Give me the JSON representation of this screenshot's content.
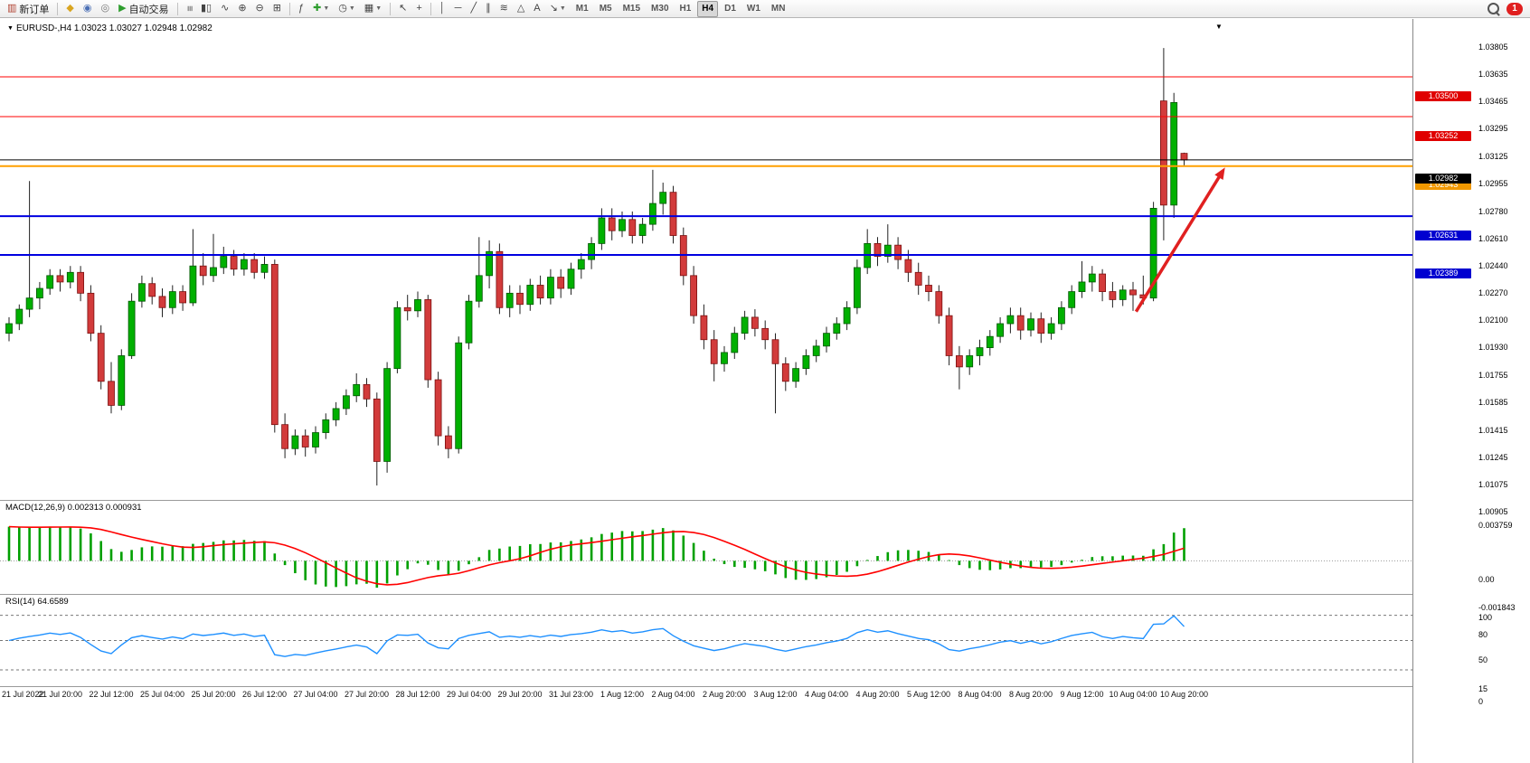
{
  "window": {
    "title": "EURUSD-,H4 1.03023 1.03027 1.02948 1.02982"
  },
  "toolbar": {
    "items": [
      {
        "name": "new-order-button",
        "glyph": "▥",
        "glyph_color": "#b04030",
        "label": "新订单"
      },
      {
        "sep": true
      },
      {
        "name": "market-watch-icon",
        "glyph": "◆",
        "glyph_color": "#d9a520"
      },
      {
        "name": "data-window-icon",
        "glyph": "◉",
        "glyph_color": "#4a6fb5"
      },
      {
        "name": "navigator-icon",
        "glyph": "◎",
        "glyph_color": "#777777"
      },
      {
        "name": "autotrading-button",
        "glyph": "▶",
        "glyph_color": "#2e9e2e",
        "label": "自动交易"
      },
      {
        "sep": true
      },
      {
        "name": "bar-chart-button",
        "glyph": "≡",
        "rot": true
      },
      {
        "name": "candlestick-chart-button",
        "glyph": "▮▯"
      },
      {
        "name": "line-chart-button",
        "glyph": "∿"
      },
      {
        "name": "zoom-in-button",
        "glyph": "⊕"
      },
      {
        "name": "zoom-out-button",
        "glyph": "⊖"
      },
      {
        "name": "tile-windows-button",
        "glyph": "⊞"
      },
      {
        "sep": true
      },
      {
        "name": "indicators-button",
        "glyph": "ƒ"
      },
      {
        "name": "add-indicator-button",
        "glyph": "✚",
        "glyph_color": "#2e9e2e",
        "dropdown": true
      },
      {
        "name": "periods-button",
        "glyph": "◷",
        "dropdown": true
      },
      {
        "name": "templates-button",
        "glyph": "▦",
        "dropdown": true
      },
      {
        "sep": true
      },
      {
        "name": "cursor-button",
        "glyph": "↖"
      },
      {
        "name": "crosshair-button",
        "glyph": "+"
      },
      {
        "sep": true
      },
      {
        "name": "vertical-line-button",
        "glyph": "│"
      },
      {
        "name": "horizontal-line-button",
        "glyph": "─"
      },
      {
        "name": "trendline-button",
        "glyph": "╱"
      },
      {
        "name": "channel-button",
        "glyph": "∥"
      },
      {
        "name": "fibonacci-button",
        "glyph": "≋"
      },
      {
        "name": "shapes-button",
        "glyph": "△"
      },
      {
        "name": "text-button",
        "glyph": "A"
      },
      {
        "name": "arrows-button",
        "glyph": "↘",
        "dropdown": true
      },
      {
        "name": "tf-m1-button",
        "tf": "M1"
      },
      {
        "name": "tf-m5-button",
        "tf": "M5"
      },
      {
        "name": "tf-m15-button",
        "tf": "M15"
      },
      {
        "name": "tf-m30-button",
        "tf": "M30"
      },
      {
        "name": "tf-h1-button",
        "tf": "H1"
      },
      {
        "name": "tf-h4-button",
        "tf": "H4",
        "active": true
      },
      {
        "name": "tf-d1-button",
        "tf": "D1"
      },
      {
        "name": "tf-w1-button",
        "tf": "W1"
      },
      {
        "name": "tf-mn-button",
        "tf": "MN"
      }
    ],
    "notification_count": "1"
  },
  "chart_data": {
    "type": "candlestick",
    "symbol": "EURUSD-",
    "timeframe": "H4",
    "title": "EURUSD-,H4 1.03023 1.03027 1.02948 1.02982",
    "current": {
      "open": 1.03023,
      "high": 1.03027,
      "low": 1.02948,
      "close": 1.02982
    },
    "colors": {
      "up": "#00B000",
      "up_stroke": "#005500",
      "down": "#D23B3B",
      "down_stroke": "#7A1010",
      "wick": "#222222"
    },
    "price_axis": {
      "max": 1.03805,
      "min": 1.00905,
      "ticks": [
        "1.03805",
        "1.03635",
        "1.03465",
        "1.03295",
        "1.03125",
        "1.02955",
        "1.02780",
        "1.02610",
        "1.02440",
        "1.02270",
        "1.02100",
        "1.01930",
        "1.01755",
        "1.01585",
        "1.01415",
        "1.01245",
        "1.01075",
        "1.00905"
      ]
    },
    "time_labels": [
      "21 Jul 2022",
      "21 Jul 20:00",
      "22 Jul 12:00",
      "25 Jul 04:00",
      "25 Jul 20:00",
      "26 Jul 12:00",
      "27 Jul 04:00",
      "27 Jul 20:00",
      "28 Jul 12:00",
      "29 Jul 04:00",
      "29 Jul 20:00",
      "31 Jul 23:00",
      "1 Aug 12:00",
      "2 Aug 04:00",
      "2 Aug 20:00",
      "3 Aug 12:00",
      "4 Aug 04:00",
      "4 Aug 20:00",
      "5 Aug 12:00",
      "8 Aug 04:00",
      "8 Aug 20:00",
      "9 Aug 12:00",
      "10 Aug 04:00",
      "10 Aug 20:00"
    ],
    "candles": [
      [
        1.019,
        1.02,
        1.0185,
        1.0196
      ],
      [
        1.0196,
        1.0208,
        1.0192,
        1.0205
      ],
      [
        1.0205,
        1.0285,
        1.02,
        1.0212
      ],
      [
        1.0212,
        1.0222,
        1.0205,
        1.0218
      ],
      [
        1.0218,
        1.023,
        1.0214,
        1.0226
      ],
      [
        1.0226,
        1.023,
        1.0216,
        1.0222
      ],
      [
        1.0222,
        1.0232,
        1.0218,
        1.0228
      ],
      [
        1.0228,
        1.0232,
        1.021,
        1.0215
      ],
      [
        1.0215,
        1.022,
        1.0185,
        1.019
      ],
      [
        1.019,
        1.0195,
        1.0155,
        1.016
      ],
      [
        1.016,
        1.0172,
        1.014,
        1.0145
      ],
      [
        1.0145,
        1.018,
        1.0142,
        1.0176
      ],
      [
        1.0176,
        1.0215,
        1.0174,
        1.021
      ],
      [
        1.021,
        1.0226,
        1.0206,
        1.0221
      ],
      [
        1.0221,
        1.0225,
        1.0208,
        1.0213
      ],
      [
        1.0213,
        1.0218,
        1.02,
        1.0206
      ],
      [
        1.0206,
        1.022,
        1.0202,
        1.0216
      ],
      [
        1.0216,
        1.022,
        1.0204,
        1.0209
      ],
      [
        1.0209,
        1.0255,
        1.0207,
        1.0232
      ],
      [
        1.0232,
        1.024,
        1.022,
        1.0226
      ],
      [
        1.0226,
        1.0252,
        1.0222,
        1.0231
      ],
      [
        1.0231,
        1.0244,
        1.0227,
        1.0238
      ],
      [
        1.0238,
        1.0242,
        1.0226,
        1.023
      ],
      [
        1.023,
        1.024,
        1.0226,
        1.0236
      ],
      [
        1.0236,
        1.024,
        1.0224,
        1.0228
      ],
      [
        1.0228,
        1.0238,
        1.0224,
        1.0233
      ],
      [
        1.0233,
        1.0236,
        1.0128,
        1.0133
      ],
      [
        1.0133,
        1.014,
        1.0112,
        1.0118
      ],
      [
        1.0118,
        1.013,
        1.0114,
        1.0126
      ],
      [
        1.0126,
        1.013,
        1.0113,
        1.0119
      ],
      [
        1.0119,
        1.0132,
        1.0115,
        1.0128
      ],
      [
        1.0128,
        1.014,
        1.0124,
        1.0136
      ],
      [
        1.0136,
        1.0147,
        1.0132,
        1.0143
      ],
      [
        1.0143,
        1.0155,
        1.0139,
        1.0151
      ],
      [
        1.0151,
        1.0165,
        1.0147,
        1.0158
      ],
      [
        1.0158,
        1.0162,
        1.0144,
        1.0149
      ],
      [
        1.0149,
        1.0153,
        1.0095,
        1.011
      ],
      [
        1.011,
        1.0172,
        1.0103,
        1.0168
      ],
      [
        1.0168,
        1.021,
        1.0165,
        1.0206
      ],
      [
        1.0206,
        1.0214,
        1.0198,
        1.0204
      ],
      [
        1.0204,
        1.0216,
        1.02,
        1.0211
      ],
      [
        1.0211,
        1.0214,
        1.0156,
        1.0161
      ],
      [
        1.0161,
        1.0166,
        1.012,
        1.0126
      ],
      [
        1.0126,
        1.0132,
        1.0112,
        1.0118
      ],
      [
        1.0118,
        1.0188,
        1.0115,
        1.0184
      ],
      [
        1.0184,
        1.0214,
        1.018,
        1.021
      ],
      [
        1.021,
        1.025,
        1.0206,
        1.0226
      ],
      [
        1.0226,
        1.0248,
        1.0218,
        1.0241
      ],
      [
        1.0241,
        1.0246,
        1.0202,
        1.0206
      ],
      [
        1.0206,
        1.022,
        1.02,
        1.0215
      ],
      [
        1.0215,
        1.022,
        1.0202,
        1.0208
      ],
      [
        1.0208,
        1.0224,
        1.0204,
        1.022
      ],
      [
        1.022,
        1.0226,
        1.0208,
        1.0212
      ],
      [
        1.0212,
        1.023,
        1.0208,
        1.0225
      ],
      [
        1.0225,
        1.023,
        1.0212,
        1.0218
      ],
      [
        1.0218,
        1.0234,
        1.0214,
        1.023
      ],
      [
        1.023,
        1.024,
        1.0224,
        1.0236
      ],
      [
        1.0236,
        1.025,
        1.023,
        1.0246
      ],
      [
        1.0246,
        1.0268,
        1.0242,
        1.0262
      ],
      [
        1.0262,
        1.0268,
        1.0248,
        1.0254
      ],
      [
        1.0254,
        1.0266,
        1.025,
        1.0261
      ],
      [
        1.0261,
        1.0266,
        1.0246,
        1.0251
      ],
      [
        1.0251,
        1.0262,
        1.0246,
        1.0258
      ],
      [
        1.0258,
        1.0292,
        1.0254,
        1.0271
      ],
      [
        1.0271,
        1.0284,
        1.0264,
        1.0278
      ],
      [
        1.0278,
        1.0282,
        1.0246,
        1.0251
      ],
      [
        1.0251,
        1.0256,
        1.022,
        1.0226
      ],
      [
        1.0226,
        1.0232,
        1.0196,
        1.0201
      ],
      [
        1.0201,
        1.0208,
        1.018,
        1.0186
      ],
      [
        1.0186,
        1.0192,
        1.016,
        1.0171
      ],
      [
        1.0171,
        1.0182,
        1.0166,
        1.0178
      ],
      [
        1.0178,
        1.0194,
        1.0174,
        1.019
      ],
      [
        1.019,
        1.0204,
        1.0186,
        1.02
      ],
      [
        1.02,
        1.0205,
        1.0188,
        1.0193
      ],
      [
        1.0193,
        1.0198,
        1.018,
        1.0186
      ],
      [
        1.0186,
        1.019,
        1.014,
        1.0171
      ],
      [
        1.0171,
        1.0175,
        1.0154,
        1.016
      ],
      [
        1.016,
        1.0172,
        1.0156,
        1.0168
      ],
      [
        1.0168,
        1.018,
        1.0164,
        1.0176
      ],
      [
        1.0176,
        1.0186,
        1.0172,
        1.0182
      ],
      [
        1.0182,
        1.0194,
        1.0178,
        1.019
      ],
      [
        1.019,
        1.02,
        1.0186,
        1.0196
      ],
      [
        1.0196,
        1.021,
        1.0192,
        1.0206
      ],
      [
        1.0206,
        1.0236,
        1.0202,
        1.0231
      ],
      [
        1.0231,
        1.0255,
        1.0227,
        1.0246
      ],
      [
        1.0246,
        1.025,
        1.0232,
        1.0238
      ],
      [
        1.0238,
        1.0258,
        1.0234,
        1.0245
      ],
      [
        1.0245,
        1.025,
        1.023,
        1.0236
      ],
      [
        1.0236,
        1.0242,
        1.0222,
        1.0228
      ],
      [
        1.0228,
        1.0234,
        1.0214,
        1.022
      ],
      [
        1.022,
        1.0226,
        1.021,
        1.0216
      ],
      [
        1.0216,
        1.022,
        1.0196,
        1.0201
      ],
      [
        1.0201,
        1.0206,
        1.017,
        1.0176
      ],
      [
        1.0176,
        1.0182,
        1.0155,
        1.0169
      ],
      [
        1.0169,
        1.018,
        1.0164,
        1.0176
      ],
      [
        1.0176,
        1.0186,
        1.017,
        1.0181
      ],
      [
        1.0181,
        1.0192,
        1.0176,
        1.0188
      ],
      [
        1.0188,
        1.02,
        1.0184,
        1.0196
      ],
      [
        1.0196,
        1.0206,
        1.019,
        1.0201
      ],
      [
        1.0201,
        1.0206,
        1.0186,
        1.0192
      ],
      [
        1.0192,
        1.0203,
        1.0188,
        1.0199
      ],
      [
        1.0199,
        1.0203,
        1.0184,
        1.019
      ],
      [
        1.019,
        1.02,
        1.0186,
        1.0196
      ],
      [
        1.0196,
        1.021,
        1.0192,
        1.0206
      ],
      [
        1.0206,
        1.022,
        1.0202,
        1.0216
      ],
      [
        1.0216,
        1.0235,
        1.0212,
        1.0222
      ],
      [
        1.0222,
        1.0232,
        1.0216,
        1.0227
      ],
      [
        1.0227,
        1.023,
        1.021,
        1.0216
      ],
      [
        1.0216,
        1.0222,
        1.0206,
        1.0211
      ],
      [
        1.0211,
        1.022,
        1.0207,
        1.0217
      ],
      [
        1.0217,
        1.0222,
        1.0204,
        1.0214
      ],
      [
        1.0214,
        1.0226,
        1.0208,
        1.0212
      ],
      [
        1.0212,
        1.0272,
        1.021,
        1.0268
      ],
      [
        1.0335,
        1.0368,
        1.0248,
        1.027
      ],
      [
        1.027,
        1.034,
        1.0262,
        1.0334
      ],
      [
        1.03023,
        1.03027,
        1.02948,
        1.02982
      ]
    ],
    "hlines": [
      {
        "price": 1.035,
        "label": "1.03500",
        "color": "#FF0000",
        "badge": "#E00000",
        "width": 1
      },
      {
        "price": 1.03252,
        "label": "1.03252",
        "color": "#FF0000",
        "badge": "#E00000",
        "width": 1
      },
      {
        "price": 1.02943,
        "label": "1.02943",
        "color": "#FFA000",
        "badge": "#F09800",
        "width": 2
      },
      {
        "price": 1.02631,
        "label": "1.02631",
        "color": "#0000E0",
        "badge": "#0000D0",
        "width": 2
      },
      {
        "price": 1.02389,
        "label": "1.02389",
        "color": "#0000E0",
        "badge": "#0000D0",
        "width": 2
      }
    ],
    "price_line": {
      "price": 1.02982,
      "label": "1.02982",
      "color": "#000000",
      "badge": "#000000"
    },
    "annotation_arrow": {
      "from": {
        "index": 110.3,
        "price": 1.02035
      },
      "to": {
        "index": 119,
        "price": 1.02935
      },
      "color": "#E02020"
    },
    "indicators": [
      {
        "name": "MACD",
        "label": "MACD(12,26,9) 0.002313 0.000931",
        "params": [
          12,
          26,
          9
        ],
        "current_values": [
          0.002313,
          0.000931
        ],
        "range": {
          "max": 0.003759,
          "min": -0.001843
        },
        "axis_ticks": [
          "0.003759",
          "0.00",
          "-0.001843"
        ],
        "colors": {
          "histogram": "#00A000",
          "signal": "#FF0000"
        }
      },
      {
        "name": "RSI",
        "label": "RSI(14) 64.6589",
        "params": [
          14
        ],
        "current_value": 64.6589,
        "range": {
          "max": 100,
          "min": 0
        },
        "axis_ticks": [
          "100",
          "80",
          "50",
          "15",
          "0"
        ],
        "levels": [
          80,
          50,
          15
        ],
        "color": "#1E90FF"
      }
    ]
  }
}
